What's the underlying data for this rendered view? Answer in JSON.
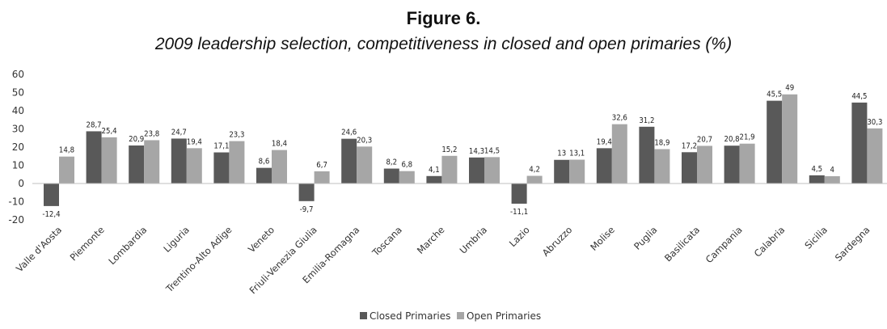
{
  "chart_data": {
    "type": "bar",
    "title": "Figure 6.",
    "subtitle": "2009 leadership selection, competitiveness in closed and open primaries (%)",
    "categories": [
      "Valle d'Aosta",
      "Piemonte",
      "Lombardia",
      "Liguria",
      "Trentino-Alto Adige",
      "Veneto",
      "Friuli-Venezia Giulia",
      "Emilia-Romagna",
      "Toscana",
      "Marche",
      "Umbria",
      "Lazio",
      "Abruzzo",
      "Molise",
      "Puglia",
      "Basilicata",
      "Campania",
      "Calabria",
      "Sicilia",
      "Sardegna"
    ],
    "series": [
      {
        "name": "Closed Primaries",
        "color": "#595959",
        "values": [
          -12.4,
          28.7,
          20.9,
          24.7,
          17.1,
          8.6,
          -9.7,
          24.6,
          8.2,
          4.1,
          14.3,
          -11.1,
          13,
          19.4,
          31.2,
          17.2,
          20.8,
          45.5,
          4.5,
          44.5
        ],
        "labels": [
          "-12,4",
          "28,7",
          "20,9",
          "24,7",
          "17,1",
          "8,6",
          "-9,7",
          "24,6",
          "8,2",
          "4,1",
          "14,3",
          "-11,1",
          "13",
          "19,4",
          "31,2",
          "17,2",
          "20,8",
          "45,5",
          "4,5",
          "44,5"
        ]
      },
      {
        "name": "Open Primaries",
        "color": "#a6a6a6",
        "values": [
          14.8,
          25.4,
          23.8,
          19.4,
          23.3,
          18.4,
          6.7,
          20.3,
          6.8,
          15.2,
          14.5,
          4.2,
          13.1,
          32.6,
          18.9,
          20.7,
          21.9,
          49,
          4,
          30.3
        ],
        "labels": [
          "14,8",
          "25,4",
          "23,8",
          "19,4",
          "23,3",
          "18,4",
          "6,7",
          "20,3",
          "6,8",
          "15,2",
          "14,5",
          "4,2",
          "13,1",
          "32,6",
          "18,9",
          "20,7",
          "21,9",
          "49",
          "4",
          "30,3"
        ]
      }
    ],
    "yticks": [
      -20,
      -10,
      0,
      10,
      20,
      30,
      40,
      50,
      60
    ],
    "ylim": [
      -20,
      60
    ],
    "legend_position": "bottom-center",
    "grid": false
  }
}
